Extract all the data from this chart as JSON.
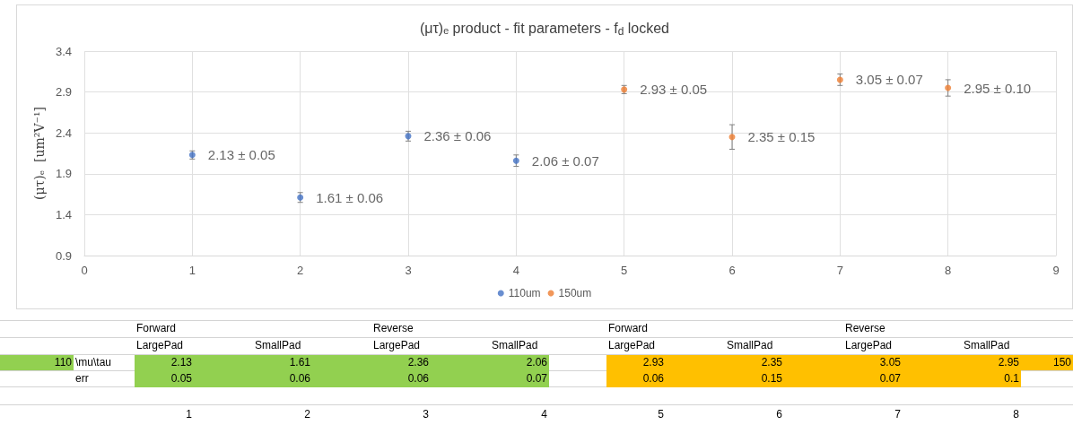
{
  "chart_data": {
    "type": "scatter",
    "title": "(μτ)ₑ product - fit parameters - f$_{d}$ locked",
    "ylabel": "(μτ)ₑ  [um²V⁻¹]",
    "xlim": [
      0,
      9
    ],
    "xticks": [
      0,
      1,
      2,
      3,
      4,
      5,
      6,
      7,
      8,
      9
    ],
    "ylim": [
      0.9,
      3.4
    ],
    "yticks": [
      0.9,
      1.4,
      1.9,
      2.4,
      2.9,
      3.4
    ],
    "grid": true,
    "legend": "bottom",
    "marker": "circle",
    "series": [
      {
        "name": "110um",
        "color": "#4472c4",
        "x": [
          1,
          2,
          3,
          4
        ],
        "values": [
          2.13,
          1.61,
          2.36,
          2.06
        ],
        "errors": [
          0.05,
          0.06,
          0.06,
          0.07
        ],
        "value_labels": [
          "2.13 ± 0.05",
          "1.61 ± 0.06",
          "2.36 ± 0.06",
          "2.06 ± 0.07"
        ]
      },
      {
        "name": "150um",
        "color": "#ed7d31",
        "x": [
          5,
          6,
          7,
          8
        ],
        "values": [
          2.93,
          2.35,
          3.05,
          2.95
        ],
        "errors": [
          0.05,
          0.15,
          0.07,
          0.1
        ],
        "value_labels": [
          "2.93 ± 0.05",
          "2.35 ± 0.15",
          "3.05 ± 0.07",
          "2.95 ± 0.10"
        ]
      }
    ],
    "annotations": [
      "Forward",
      "Reverse",
      "Forward",
      "Reverse",
      "LargePad",
      "SmallPad",
      "LargePad",
      "SmallPad",
      "LargePad",
      "SmallPad",
      "LargePad",
      "SmallPad",
      "110",
      "\\mu\\tau",
      "2.13",
      "1.61",
      "2.36",
      "2.06",
      "2.93",
      "2.35",
      "3.05",
      "2.95",
      "150",
      "err",
      "0.05",
      "0.06",
      "0.06",
      "0.07",
      "0.06",
      "0.15",
      "0.07",
      "0.1",
      "1",
      "2",
      "3",
      "4",
      "5",
      "6",
      "7",
      "8"
    ]
  }
}
